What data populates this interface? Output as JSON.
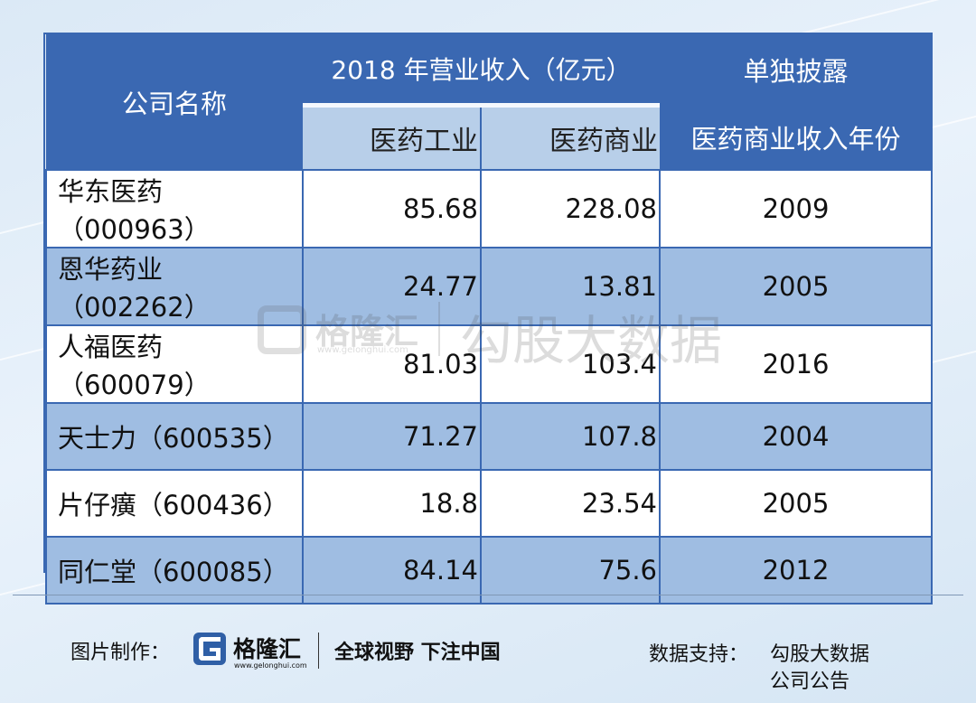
{
  "table": {
    "header": {
      "company_col": "公司名称",
      "revenue_group": "2018 年营业收入（亿元）",
      "industry_col": "医药工业",
      "commerce_col": "医药商业",
      "disclosure_line1": "单独披露",
      "disclosure_line2": "医药商业收入年份"
    },
    "rows": [
      {
        "name": "华东医药（000963）",
        "industry": "85.68",
        "commerce": "228.08",
        "year": "2009"
      },
      {
        "name": "恩华药业（002262）",
        "industry": "24.77",
        "commerce": "13.81",
        "year": "2005"
      },
      {
        "name": "人福医药（600079）",
        "industry": "81.03",
        "commerce": "103.4",
        "year": "2016"
      },
      {
        "name": "天士力（600535）",
        "industry": "71.27",
        "commerce": "107.8",
        "year": "2004"
      },
      {
        "name": "片仔癀（600436）",
        "industry": "18.8",
        "commerce": "23.54",
        "year": "2005"
      },
      {
        "name": "同仁堂（600085）",
        "industry": "84.14",
        "commerce": "75.6",
        "year": "2012"
      }
    ]
  },
  "watermark": {
    "brand": "格隆汇",
    "url": "www.gelonghui.com",
    "text": "勾股大数据"
  },
  "footer": {
    "made_by_label": "图片制作：",
    "brand": "格隆汇",
    "brand_url": "www.gelonghui.com",
    "slogan": "全球视野 下注中国",
    "support_label": "数据支持：",
    "source_1": "勾股大数据",
    "source_2": "公司公告"
  },
  "colors": {
    "header_dark": "#3a68b2",
    "header_light": "#b8cfe9",
    "row_alt": "#9fbde2",
    "logo_blue": "#2f5fa6"
  }
}
